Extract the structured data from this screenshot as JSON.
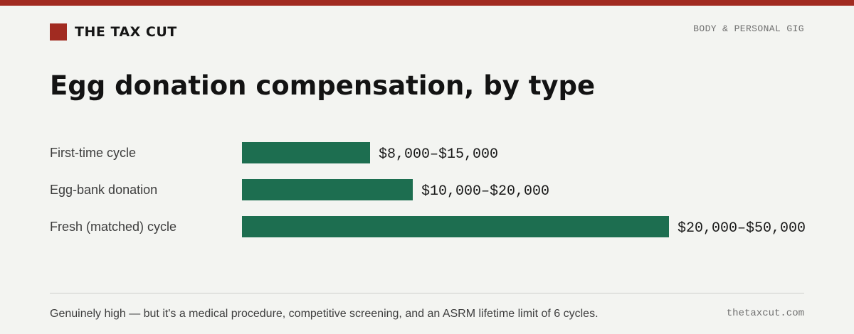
{
  "header": {
    "brand": "THE TAX CUT",
    "category": "BODY & PERSONAL GIG"
  },
  "chart_data": {
    "type": "bar",
    "orientation": "horizontal",
    "title": "Egg donation compensation, by type",
    "categories": [
      "First-time cycle",
      "Egg-bank donation",
      "Fresh (matched) cycle"
    ],
    "values": [
      15000,
      20000,
      50000
    ],
    "value_labels": [
      "$8,000–$15,000",
      "$10,000–$20,000",
      "$20,000–$50,000"
    ],
    "xlim": [
      0,
      50000
    ],
    "grid": false,
    "legend": "none",
    "bar_color": "#1d6e50"
  },
  "footer": {
    "note": "Genuinely high — but it's a medical procedure, competitive screening, and an ASRM lifetime limit of 6 cycles.",
    "site": "thetaxcut.com"
  },
  "colors": {
    "accent": "#a12b21",
    "background": "#f3f4f1"
  }
}
